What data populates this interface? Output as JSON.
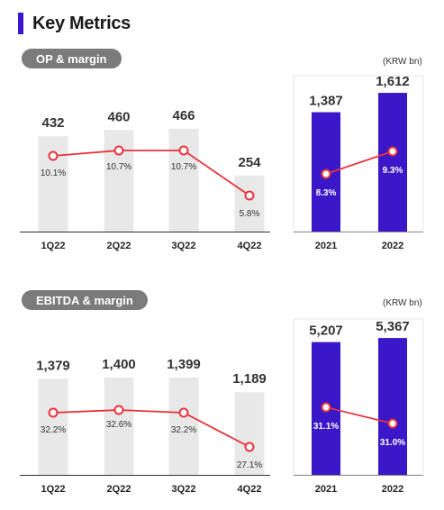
{
  "page": {
    "title": "Key Metrics",
    "accent_color": "#3a17c9"
  },
  "chart_data": [
    {
      "type": "bar",
      "section_label": "OP & margin",
      "unit": "(KRW bn)",
      "quarterly": {
        "categories": [
          "1Q22",
          "2Q22",
          "3Q22",
          "4Q22"
        ],
        "values": [
          432,
          460,
          466,
          254
        ],
        "value_labels": [
          "432",
          "460",
          "466",
          "254"
        ],
        "margin": [
          10.1,
          10.7,
          10.7,
          5.8
        ],
        "margin_labels": [
          "10.1%",
          "10.7%",
          "10.7%",
          "5.8%"
        ],
        "bar_color": "#e8e8e8"
      },
      "annual": {
        "categories": [
          "2021",
          "2022"
        ],
        "values": [
          1387,
          1612
        ],
        "value_labels": [
          "1,387",
          "1,612"
        ],
        "margin": [
          8.3,
          9.3
        ],
        "margin_labels": [
          "8.3%",
          "9.3%"
        ],
        "bar_color": "#3a17c9"
      },
      "line_color": "#e8323c"
    },
    {
      "type": "bar",
      "section_label": "EBITDA & margin",
      "unit": "(KRW bn)",
      "quarterly": {
        "categories": [
          "1Q22",
          "2Q22",
          "3Q22",
          "4Q22"
        ],
        "values": [
          1379,
          1400,
          1399,
          1189
        ],
        "value_labels": [
          "1,379",
          "1,400",
          "1,399",
          "1,189"
        ],
        "margin": [
          32.2,
          32.6,
          32.2,
          27.1
        ],
        "margin_labels": [
          "32.2%",
          "32.6%",
          "32.2%",
          "27.1%"
        ],
        "bar_color": "#e8e8e8"
      },
      "annual": {
        "categories": [
          "2021",
          "2022"
        ],
        "values": [
          5207,
          5367
        ],
        "value_labels": [
          "5,207",
          "5,367"
        ],
        "margin": [
          31.1,
          31.0
        ],
        "margin_labels": [
          "31.1%",
          "31.0%"
        ],
        "bar_color": "#3a17c9"
      },
      "line_color": "#e8323c"
    }
  ]
}
